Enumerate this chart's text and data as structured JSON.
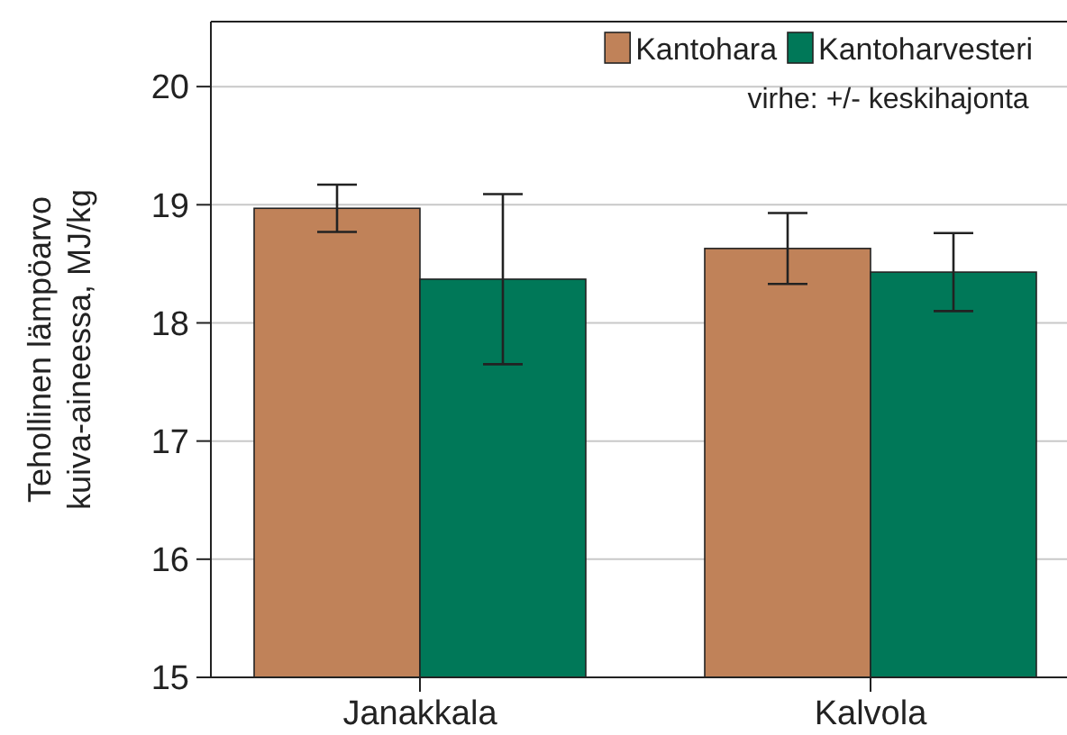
{
  "chart_data": {
    "type": "bar",
    "ylabel": "Tehollinen lämpöarvo\nkuiva-aineessa, MJ/kg",
    "categories": [
      "Janakkala",
      "Kalvola"
    ],
    "series": [
      {
        "name": "Kantohara",
        "color": "#c08259",
        "values": [
          18.97,
          18.63
        ],
        "errors": [
          0.2,
          0.3
        ]
      },
      {
        "name": "Kantoharvesteri",
        "color": "#007858",
        "values": [
          18.37,
          18.43
        ],
        "errors": [
          0.72,
          0.33
        ]
      }
    ],
    "ylim": [
      15,
      20.55
    ],
    "yticks": [
      15,
      16,
      17,
      18,
      19,
      20
    ],
    "grid": "y",
    "legend": "top right",
    "annotations": [
      "virhe: +/- keskihajonta"
    ]
  }
}
